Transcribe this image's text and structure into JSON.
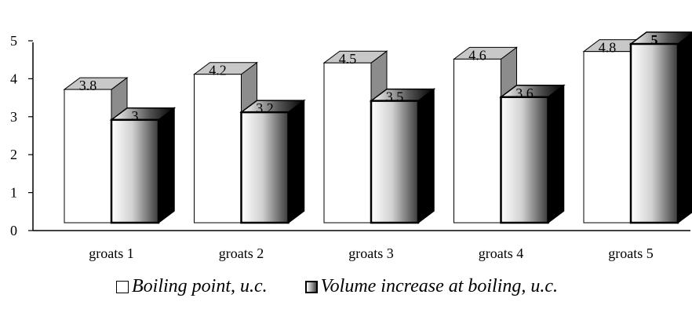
{
  "chart_data": {
    "type": "bar",
    "categories": [
      "groats 1",
      "groats 2",
      "groats 3",
      "groats 4",
      "groats 5"
    ],
    "series": [
      {
        "name": "Boiling point, u.c.",
        "values": [
          3.8,
          4.2,
          4.5,
          4.6,
          4.8
        ],
        "labels": [
          "3.8",
          "4.2",
          "4.5",
          "4.6",
          "4.8"
        ]
      },
      {
        "name": "Volume increase at boiling, u.c.",
        "values": [
          3,
          3.2,
          3.5,
          3.6,
          5
        ],
        "labels": [
          "3",
          "3.2",
          "3.5",
          "3.6",
          "5"
        ]
      }
    ],
    "yticks": [
      "0",
      "1",
      "2",
      "3",
      "4",
      "5"
    ],
    "ylim": [
      0,
      5
    ],
    "grid": false,
    "legend_position": "bottom",
    "colors": {
      "series1_fill": "#ffffff",
      "series1_side": "#8c8c8c",
      "series2_side": "#000000",
      "axis": "#000000"
    }
  }
}
